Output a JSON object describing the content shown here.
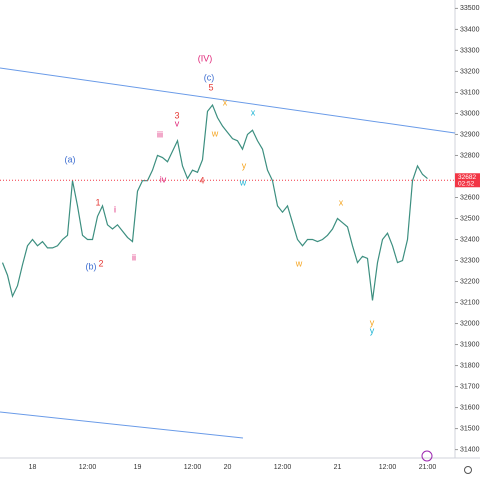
{
  "chart_data": {
    "type": "line",
    "categories": [
      null,
      null,
      null,
      null,
      null,
      null,
      "18",
      null,
      null,
      null,
      null,
      null,
      null,
      null,
      null,
      null,
      null,
      "12:00",
      null,
      null,
      null,
      null,
      null,
      null,
      null,
      null,
      null,
      "19",
      null,
      null,
      null,
      null,
      null,
      null,
      null,
      null,
      null,
      null,
      "12:00",
      null,
      null,
      null,
      null,
      null,
      null,
      "20",
      null,
      null,
      null,
      null,
      null,
      null,
      null,
      null,
      null,
      null,
      "12:00",
      null,
      null,
      null,
      null,
      null,
      null,
      null,
      null,
      null,
      null,
      "21",
      null,
      null,
      null,
      null,
      null,
      null,
      null,
      null,
      null,
      "12:00",
      null,
      null,
      null,
      null,
      null,
      null,
      null,
      "21:00"
    ],
    "series": [
      {
        "color": "#3d8f80",
        "values": [
          32290,
          32230,
          32130,
          32180,
          32280,
          32370,
          32400,
          32370,
          32390,
          32360,
          32360,
          32370,
          32400,
          32420,
          32680,
          32560,
          32420,
          32400,
          32400,
          32510,
          32560,
          32470,
          32450,
          32470,
          32440,
          32410,
          32390,
          32630,
          32680,
          32680,
          32730,
          32800,
          32790,
          32770,
          32820,
          32870,
          32750,
          32690,
          32730,
          32720,
          32780,
          33010,
          33040,
          32980,
          32940,
          32910,
          32880,
          32870,
          32830,
          32900,
          32920,
          32870,
          32830,
          32730,
          32680,
          32560,
          32530,
          32560,
          32480,
          32400,
          32370,
          32400,
          32400,
          32390,
          32400,
          32420,
          32450,
          32500,
          32480,
          32460,
          32370,
          32290,
          32320,
          32310,
          32110,
          32290,
          32400,
          32430,
          32370,
          32290,
          32300,
          32400,
          32680,
          32750,
          32710,
          32690
        ]
      }
    ],
    "ylim": [
      31360,
      33540
    ],
    "yticks": [
      31400,
      31500,
      31600,
      31700,
      31800,
      31900,
      32000,
      32100,
      32200,
      32300,
      32400,
      32500,
      32600,
      32700,
      32800,
      32900,
      33000,
      33100,
      33200,
      33300,
      33400,
      33500
    ],
    "last_price": 32682,
    "last_price_color": "#f23645",
    "countdown": "02:52",
    "annotations": [
      {
        "text": "(IV)",
        "color": "#e0287a"
      },
      {
        "text": "(c)",
        "color": "#3f6fd1"
      },
      {
        "text": "5",
        "color": "#e53935"
      },
      {
        "text": "x",
        "color": "#f5a623"
      },
      {
        "text": "x",
        "color": "#1eb4d4"
      },
      {
        "text": "3",
        "color": "#e53935"
      },
      {
        "text": "v",
        "color": "#e0287a"
      },
      {
        "text": "iii",
        "color": "#e0287a"
      },
      {
        "text": "w",
        "color": "#f5a623"
      },
      {
        "text": "y",
        "color": "#f5a623"
      },
      {
        "text": "w",
        "color": "#1eb4d4"
      },
      {
        "text": "iv",
        "color": "#e0287a"
      },
      {
        "text": "4",
        "color": "#e53935"
      },
      {
        "text": "(a)",
        "color": "#3f6fd1"
      },
      {
        "text": "1",
        "color": "#e53935"
      },
      {
        "text": "i",
        "color": "#e0287a"
      },
      {
        "text": "(b)",
        "color": "#3f6fd1"
      },
      {
        "text": "2",
        "color": "#e53935"
      },
      {
        "text": "ii",
        "color": "#e0287a"
      },
      {
        "text": "x",
        "color": "#f5a623"
      },
      {
        "text": "w",
        "color": "#f5a623"
      },
      {
        "text": "y",
        "color": "#f5a623"
      },
      {
        "text": "y",
        "color": "#1eb4d4"
      }
    ]
  }
}
